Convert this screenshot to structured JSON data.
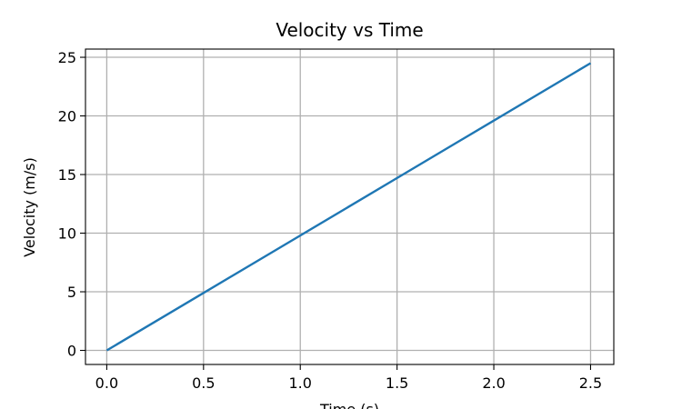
{
  "chart_data": {
    "type": "line",
    "title": "Velocity vs Time",
    "xlabel": "Time (s)",
    "ylabel": "Velocity (m/s)",
    "xlim": [
      -0.11,
      2.62
    ],
    "ylim": [
      -1.2,
      25.7
    ],
    "xticks": [
      0.0,
      0.5,
      1.0,
      1.5,
      2.0,
      2.5
    ],
    "xtick_labels": [
      "0.0",
      "0.5",
      "1.0",
      "1.5",
      "2.0",
      "2.5"
    ],
    "yticks": [
      0,
      5,
      10,
      15,
      20,
      25
    ],
    "ytick_labels": [
      "0",
      "5",
      "10",
      "15",
      "20",
      "25"
    ],
    "grid": true,
    "legend": "none",
    "series": [
      {
        "color": "#1f77b4",
        "x": [
          0.0,
          0.5,
          1.0,
          1.5,
          2.0,
          2.5
        ],
        "values": [
          0.0,
          4.9,
          9.8,
          14.7,
          19.6,
          24.5
        ]
      }
    ]
  }
}
